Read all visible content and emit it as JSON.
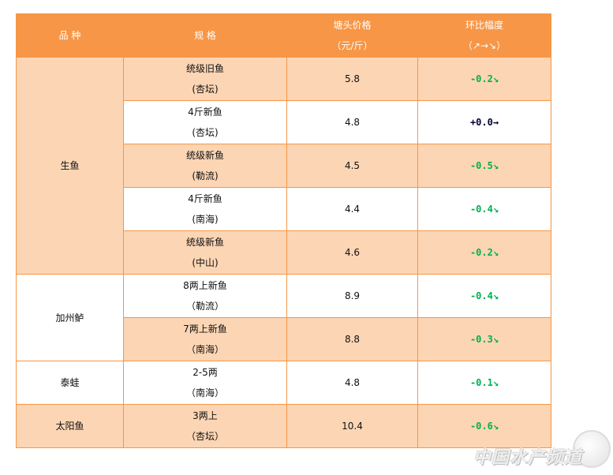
{
  "header": {
    "variety": "品 种",
    "spec": "规 格",
    "price_line1": "塘头价格",
    "price_line2": "（元/斤）",
    "change_line1": "环比幅度",
    "change_line2": "（↗→↘）"
  },
  "colors": {
    "header_bg": "#F79646",
    "row_peach": "#FCD5B4",
    "down": "#00B050",
    "flat": "#000033"
  },
  "groups": [
    {
      "variety": "生鱼",
      "rows": [
        {
          "spec1": "统级旧鱼",
          "spec2": "(杏坛)",
          "price": "5.8",
          "change": "-0.2↘",
          "trend": "down"
        },
        {
          "spec1": "4斤新鱼",
          "spec2": "(杏坛)",
          "price": "4.8",
          "change": "+0.0→",
          "trend": "flat"
        },
        {
          "spec1": "统级新鱼",
          "spec2": "(勒流)",
          "price": "4.5",
          "change": "-0.5↘",
          "trend": "down"
        },
        {
          "spec1": "4斤新鱼",
          "spec2": "(南海)",
          "price": "4.4",
          "change": "-0.4↘",
          "trend": "down"
        },
        {
          "spec1": "统级新鱼",
          "spec2": "(中山)",
          "price": "4.6",
          "change": "-0.2↘",
          "trend": "down"
        }
      ]
    },
    {
      "variety": "加州鲈",
      "rows": [
        {
          "spec1": "8两上新鱼",
          "spec2": "（勒流）",
          "price": "8.9",
          "change": "-0.4↘",
          "trend": "down"
        },
        {
          "spec1": "7两上新鱼",
          "spec2": "（南海）",
          "price": "8.8",
          "change": "-0.3↘",
          "trend": "down"
        }
      ]
    },
    {
      "variety": "泰蛙",
      "rows": [
        {
          "spec1": "2-5两",
          "spec2": "（南海）",
          "price": "4.8",
          "change": "-0.1↘",
          "trend": "down"
        }
      ]
    },
    {
      "variety": "太阳鱼",
      "rows": [
        {
          "spec1": "3两上",
          "spec2": "（杏坛）",
          "price": "10.4",
          "change": "-0.6↘",
          "trend": "down"
        }
      ]
    }
  ],
  "watermark": "中国水产频道"
}
